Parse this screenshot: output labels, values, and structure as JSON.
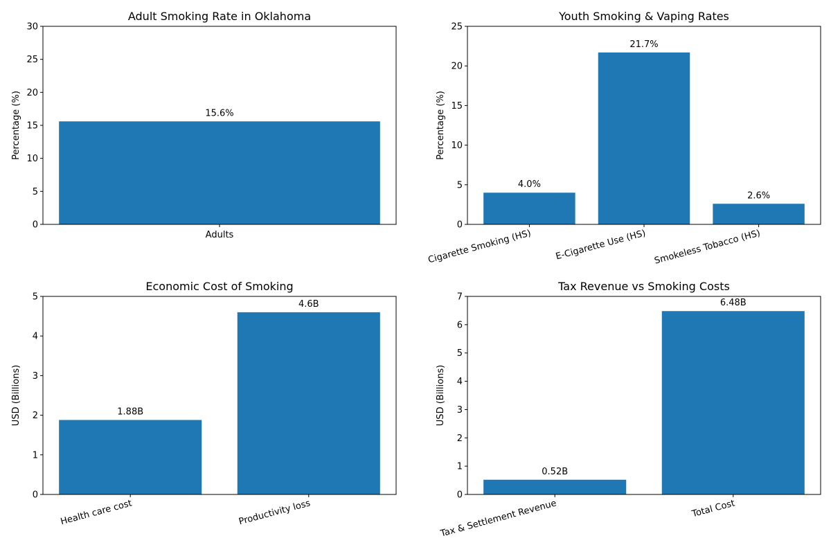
{
  "chart_data": [
    {
      "type": "bar",
      "title": "Adult Smoking Rate in Oklahoma",
      "xlabel": "",
      "ylabel": "Percentage (%)",
      "categories": [
        "Adults"
      ],
      "values": [
        15.6
      ],
      "value_labels": [
        "15.6%"
      ],
      "ylim": [
        0,
        30
      ],
      "yticks": [
        0,
        5,
        10,
        15,
        20,
        25,
        30
      ],
      "x_tick_rotation": 0,
      "grid": false,
      "color": "#1f77b4"
    },
    {
      "type": "bar",
      "title": "Youth Smoking & Vaping Rates",
      "xlabel": "",
      "ylabel": "Percentage (%)",
      "categories": [
        "Cigarette Smoking (HS)",
        "E-Cigarette Use (HS)",
        "Smokeless Tobacco (HS)"
      ],
      "values": [
        4.0,
        21.7,
        2.6
      ],
      "value_labels": [
        "4.0%",
        "21.7%",
        "2.6%"
      ],
      "ylim": [
        0,
        25
      ],
      "yticks": [
        0,
        5,
        10,
        15,
        20,
        25
      ],
      "x_tick_rotation": 15,
      "grid": false,
      "color": "#1f77b4"
    },
    {
      "type": "bar",
      "title": "Economic Cost of Smoking",
      "xlabel": "",
      "ylabel": "USD (Billions)",
      "categories": [
        "Health care cost",
        "Productivity loss"
      ],
      "values": [
        1.88,
        4.6
      ],
      "value_labels": [
        "1.88B",
        "4.6B"
      ],
      "ylim": [
        0,
        5
      ],
      "yticks": [
        0,
        1,
        2,
        3,
        4,
        5
      ],
      "x_tick_rotation": 15,
      "grid": false,
      "color": "#1f77b4"
    },
    {
      "type": "bar",
      "title": "Tax Revenue vs Smoking Costs",
      "xlabel": "",
      "ylabel": "USD (Billions)",
      "categories": [
        "Tax & Settlement Revenue",
        "Total Cost"
      ],
      "values": [
        0.52,
        6.48
      ],
      "value_labels": [
        "0.52B",
        "6.48B"
      ],
      "ylim": [
        0,
        7
      ],
      "yticks": [
        0,
        1,
        2,
        3,
        4,
        5,
        6,
        7
      ],
      "x_tick_rotation": 15,
      "grid": false,
      "color": "#1f77b4"
    }
  ]
}
